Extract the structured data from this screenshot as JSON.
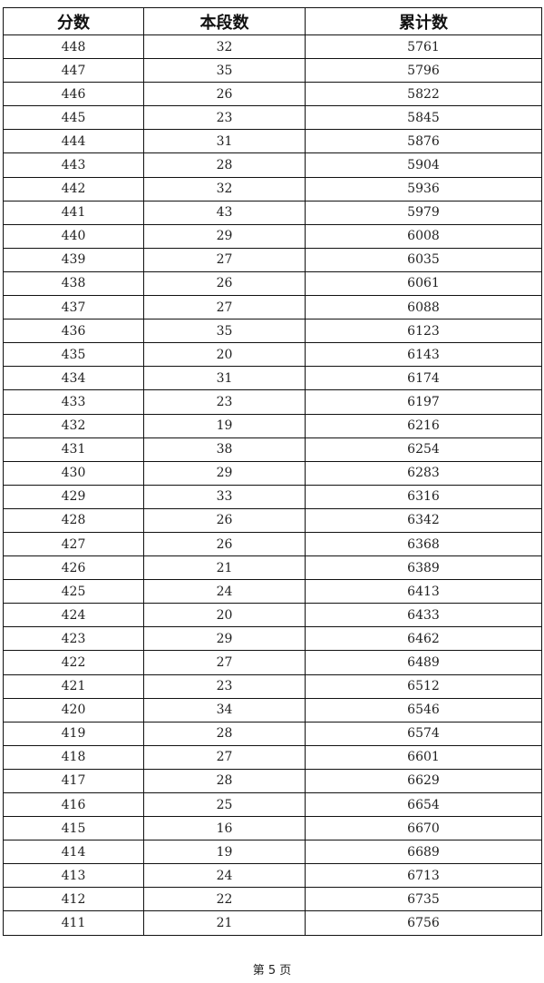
{
  "table": {
    "headers": [
      "分数",
      "本段数",
      "累计数"
    ],
    "rows": [
      [
        "448",
        "32",
        "5761"
      ],
      [
        "447",
        "35",
        "5796"
      ],
      [
        "446",
        "26",
        "5822"
      ],
      [
        "445",
        "23",
        "5845"
      ],
      [
        "444",
        "31",
        "5876"
      ],
      [
        "443",
        "28",
        "5904"
      ],
      [
        "442",
        "32",
        "5936"
      ],
      [
        "441",
        "43",
        "5979"
      ],
      [
        "440",
        "29",
        "6008"
      ],
      [
        "439",
        "27",
        "6035"
      ],
      [
        "438",
        "26",
        "6061"
      ],
      [
        "437",
        "27",
        "6088"
      ],
      [
        "436",
        "35",
        "6123"
      ],
      [
        "435",
        "20",
        "6143"
      ],
      [
        "434",
        "31",
        "6174"
      ],
      [
        "433",
        "23",
        "6197"
      ],
      [
        "432",
        "19",
        "6216"
      ],
      [
        "431",
        "38",
        "6254"
      ],
      [
        "430",
        "29",
        "6283"
      ],
      [
        "429",
        "33",
        "6316"
      ],
      [
        "428",
        "26",
        "6342"
      ],
      [
        "427",
        "26",
        "6368"
      ],
      [
        "426",
        "21",
        "6389"
      ],
      [
        "425",
        "24",
        "6413"
      ],
      [
        "424",
        "20",
        "6433"
      ],
      [
        "423",
        "29",
        "6462"
      ],
      [
        "422",
        "27",
        "6489"
      ],
      [
        "421",
        "23",
        "6512"
      ],
      [
        "420",
        "34",
        "6546"
      ],
      [
        "419",
        "28",
        "6574"
      ],
      [
        "418",
        "27",
        "6601"
      ],
      [
        "417",
        "28",
        "6629"
      ],
      [
        "416",
        "25",
        "6654"
      ],
      [
        "415",
        "16",
        "6670"
      ],
      [
        "414",
        "19",
        "6689"
      ],
      [
        "413",
        "24",
        "6713"
      ],
      [
        "412",
        "22",
        "6735"
      ],
      [
        "411",
        "21",
        "6756"
      ]
    ]
  },
  "footer": {
    "page_label": "第 5 页"
  }
}
